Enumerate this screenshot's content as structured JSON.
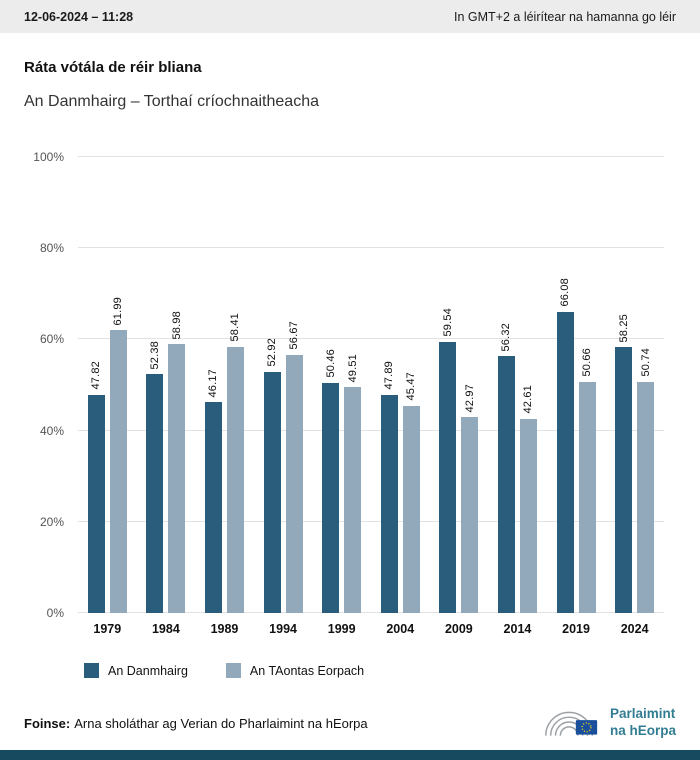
{
  "header": {
    "datetime": "12-06-2024 – 11:28",
    "timezone_note": "In GMT+2 a léirítear na hamanna go léir"
  },
  "title": "Ráta vótála de réir bliana",
  "subtitle": "An Danmhairg – Torthaí críochnaitheacha",
  "chart_data": {
    "type": "bar",
    "categories": [
      "1979",
      "1984",
      "1989",
      "1994",
      "1999",
      "2004",
      "2009",
      "2014",
      "2019",
      "2024"
    ],
    "series": [
      {
        "name": "An Danmhairg",
        "color": "#2a5d7c",
        "values": [
          47.82,
          52.38,
          46.17,
          52.92,
          50.46,
          47.89,
          59.54,
          56.32,
          66.08,
          58.25
        ]
      },
      {
        "name": "An TAontas Eorpach",
        "color": "#91a9ba",
        "values": [
          61.99,
          58.98,
          58.41,
          56.67,
          49.51,
          45.47,
          42.97,
          42.61,
          50.66,
          50.74
        ]
      }
    ],
    "title": "Ráta vótála de réir bliana",
    "xlabel": "",
    "ylabel": "",
    "ylim": [
      0,
      100
    ],
    "yticks": [
      "0%",
      "20%",
      "40%",
      "60%",
      "80%",
      "100%"
    ],
    "grid": true,
    "legend_position": "bottom",
    "value_label_decimals": 2
  },
  "footer": {
    "source_label": "Foinse:",
    "source_text": "Arna sholáthar ag Verian do Pharlaimint na hEorpa",
    "logo_line1": "Parlaimint",
    "logo_line2": "na hEorpa"
  }
}
